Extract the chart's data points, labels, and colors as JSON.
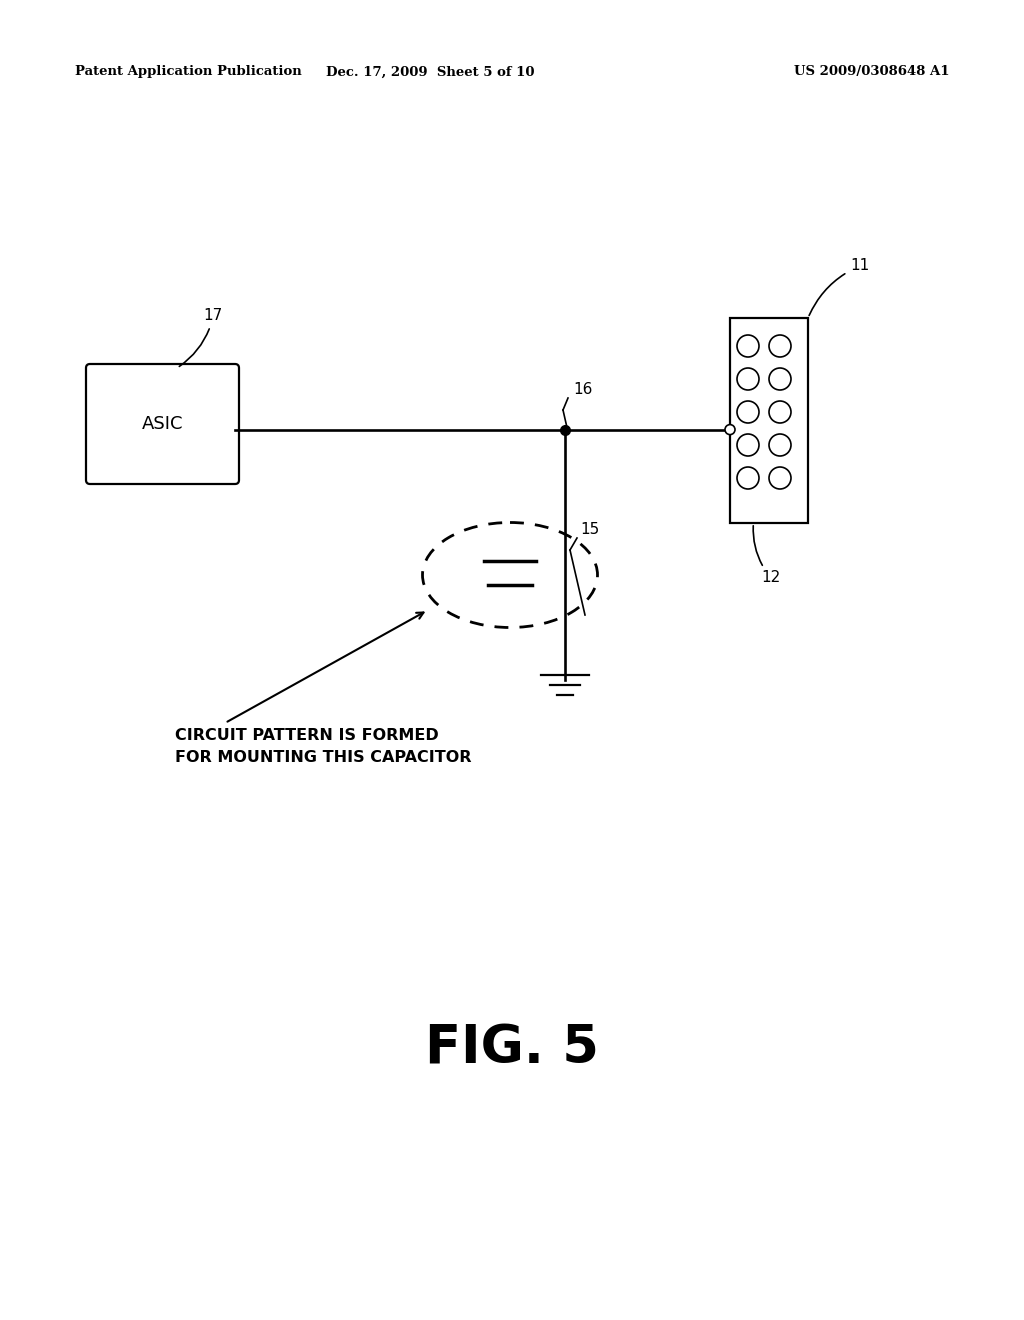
{
  "bg_color": "#ffffff",
  "header_left": "Patent Application Publication",
  "header_mid": "Dec. 17, 2009  Sheet 5 of 10",
  "header_right": "US 2009/0308648 A1",
  "fig_label": "FIG. 5",
  "asic_label": "ASIC",
  "ref_17": "17",
  "ref_11": "11",
  "ref_12": "12",
  "ref_16": "16",
  "ref_15": "15",
  "annotation_text_1": "CIRCUIT PATTERN IS FORMED",
  "annotation_text_2": "FOR MOUNTING THIS CAPACITOR",
  "line_color": "#000000",
  "line_width": 1.6
}
